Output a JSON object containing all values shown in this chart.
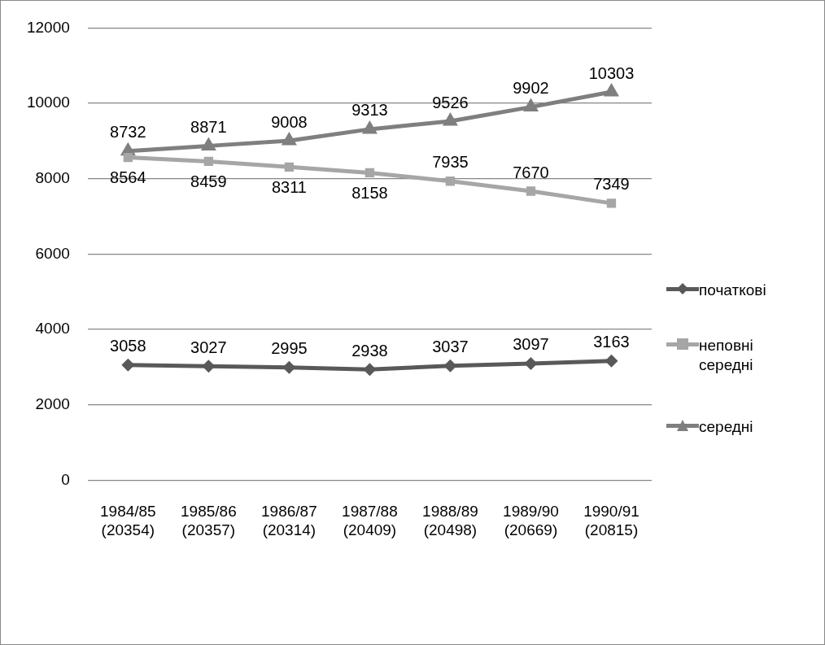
{
  "chart_data": {
    "type": "line",
    "categories": [
      "1984/85\n(20354)",
      "1985/86\n(20357)",
      "1986/87\n(20314)",
      "1987/88\n(20409)",
      "1988/89\n(20498)",
      "1989/90\n(20669)",
      "1990/91\n(20815)"
    ],
    "series": [
      {
        "name": "початкові",
        "color": "#595959",
        "marker": "diamond",
        "values": [
          3058,
          3027,
          2995,
          2938,
          3037,
          3097,
          3163
        ]
      },
      {
        "name": "неповні середні",
        "color": "#a6a6a6",
        "marker": "square",
        "values": [
          8564,
          8459,
          8311,
          8158,
          7935,
          7670,
          7349
        ]
      },
      {
        "name": "середні",
        "color": "#7f7f7f",
        "marker": "triangle",
        "values": [
          8732,
          8871,
          9008,
          9313,
          9526,
          9902,
          10303
        ]
      }
    ],
    "ylim": [
      0,
      12000
    ],
    "yticks": [
      0,
      2000,
      4000,
      6000,
      8000,
      10000,
      12000
    ],
    "grid": "y",
    "legend": "right",
    "data_labels": true
  }
}
